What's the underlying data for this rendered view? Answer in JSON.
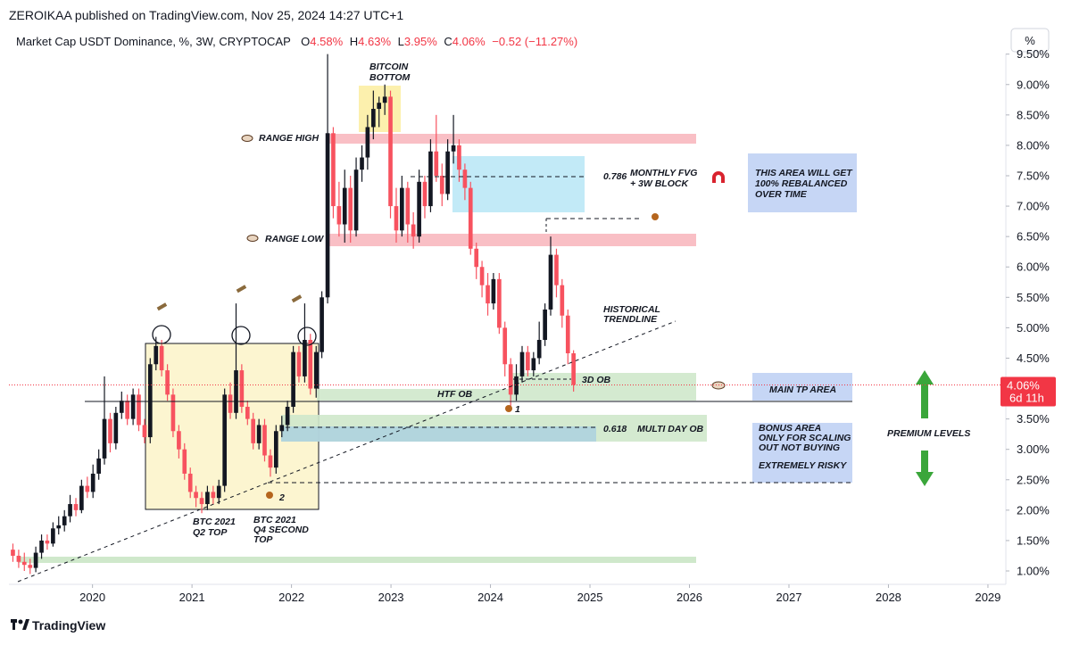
{
  "header": {
    "published": "ZEROIKAA published on TradingView.com, Nov 25, 2024 14:27 UTC+1",
    "footer": "TradingView",
    "scale_button": "%"
  },
  "chart_data": {
    "type": "candlestick",
    "title": "Market Cap USDT Dominance, %, 3W, CRYPTOCAP",
    "legend": [
      {
        "label": "O",
        "value": "4.58%"
      },
      {
        "label": "H",
        "value": "4.63%"
      },
      {
        "label": "L",
        "value": "3.95%"
      },
      {
        "label": "C",
        "value": "4.06%"
      }
    ],
    "change": "−0.52 (−11.27%)",
    "last_price_label": "4.06%",
    "countdown": "6d 11h",
    "up_color": "#131722",
    "down_color": "#f7525f",
    "x": [
      2019.2,
      2019.258,
      2019.315,
      2019.373,
      2019.43,
      2019.488,
      2019.545,
      2019.603,
      2019.66,
      2019.718,
      2019.775,
      2019.833,
      2019.89,
      2019.948,
      2020.005,
      2020.063,
      2020.12,
      2020.178,
      2020.235,
      2020.293,
      2020.35,
      2020.408,
      2020.465,
      2020.523,
      2020.58,
      2020.638,
      2020.695,
      2020.753,
      2020.81,
      2020.868,
      2020.925,
      2020.983,
      2021.04,
      2021.098,
      2021.155,
      2021.213,
      2021.27,
      2021.328,
      2021.385,
      2021.443,
      2021.5,
      2021.558,
      2021.615,
      2021.673,
      2021.73,
      2021.788,
      2021.845,
      2021.903,
      2021.96,
      2022.018,
      2022.075,
      2022.133,
      2022.19,
      2022.248,
      2022.305,
      2022.363,
      2022.42,
      2022.478,
      2022.535,
      2022.593,
      2022.65,
      2022.708,
      2022.765,
      2022.823,
      2022.88,
      2022.938,
      2022.995,
      2023.053,
      2023.11,
      2023.168,
      2023.225,
      2023.283,
      2023.34,
      2023.398,
      2023.455,
      2023.513,
      2023.57,
      2023.628,
      2023.685,
      2023.743,
      2023.8,
      2023.858,
      2023.915,
      2023.973,
      2024.03,
      2024.088,
      2024.145,
      2024.203,
      2024.26,
      2024.318,
      2024.375,
      2024.433,
      2024.49,
      2024.548,
      2024.605,
      2024.663,
      2024.72,
      2024.778,
      2024.835
    ],
    "open": [
      1.35,
      1.25,
      1.15,
      1.1,
      1.05,
      1.3,
      1.5,
      1.45,
      1.7,
      1.75,
      1.9,
      2.1,
      2.0,
      2.4,
      2.3,
      2.6,
      2.85,
      3.5,
      3.1,
      3.6,
      3.8,
      3.5,
      3.9,
      3.4,
      3.2,
      4.4,
      4.7,
      4.3,
      3.9,
      3.3,
      3.0,
      2.6,
      2.3,
      2.2,
      2.1,
      2.3,
      2.2,
      2.4,
      3.9,
      3.6,
      4.3,
      3.7,
      3.5,
      3.1,
      3.4,
      2.9,
      2.7,
      3.3,
      3.4,
      3.7,
      4.6,
      4.2,
      4.8,
      4.0,
      4.6,
      5.5,
      8.2,
      7.0,
      6.7,
      7.3,
      6.6,
      7.6,
      7.8,
      8.3,
      8.6,
      8.7,
      8.8,
      7.0,
      6.6,
      7.3,
      6.7,
      6.5,
      7.4,
      7.0,
      7.9,
      7.5,
      7.2,
      7.9,
      8.0,
      7.6,
      7.3,
      6.3,
      6.0,
      5.7,
      5.4,
      5.8,
      5.0,
      4.4,
      3.9,
      4.2,
      4.6,
      4.3,
      4.5,
      4.8,
      5.3,
      6.2,
      5.7,
      5.2,
      4.58
    ],
    "high": [
      1.45,
      1.35,
      1.3,
      1.2,
      1.4,
      1.6,
      1.6,
      1.8,
      1.9,
      2.0,
      2.25,
      2.2,
      2.5,
      2.55,
      2.75,
      3.0,
      4.2,
      3.6,
      3.7,
      3.95,
      3.9,
      4.0,
      4.0,
      3.5,
      4.5,
      4.85,
      4.8,
      4.4,
      4.0,
      3.4,
      3.1,
      2.7,
      2.4,
      2.3,
      2.4,
      2.4,
      2.5,
      4.0,
      4.1,
      5.4,
      4.4,
      3.8,
      3.6,
      3.5,
      3.5,
      3.0,
      3.4,
      3.55,
      3.8,
      4.7,
      4.7,
      5.4,
      4.9,
      4.7,
      5.6,
      9.5,
      8.3,
      7.4,
      7.6,
      7.5,
      7.8,
      8.0,
      8.5,
      8.9,
      8.8,
      9.0,
      8.9,
      7.3,
      7.5,
      7.4,
      6.9,
      7.6,
      7.5,
      8.1,
      8.5,
      7.7,
      8.1,
      8.5,
      8.1,
      7.7,
      7.4,
      6.4,
      6.1,
      5.9,
      5.9,
      5.9,
      5.1,
      4.5,
      4.4,
      4.7,
      4.7,
      4.6,
      5.1,
      5.4,
      6.5,
      6.3,
      5.8,
      5.3,
      4.63
    ],
    "low": [
      1.15,
      1.05,
      1.0,
      0.95,
      0.98,
      1.2,
      1.35,
      1.4,
      1.6,
      1.65,
      1.8,
      1.9,
      1.95,
      2.2,
      2.2,
      2.5,
      2.75,
      2.95,
      3.0,
      3.5,
      3.4,
      3.4,
      3.3,
      3.1,
      3.1,
      4.3,
      4.2,
      3.8,
      3.2,
      2.85,
      2.5,
      2.2,
      2.05,
      1.95,
      2.0,
      2.1,
      2.1,
      2.3,
      3.5,
      3.5,
      3.6,
      3.4,
      3.0,
      3.0,
      2.8,
      2.55,
      2.6,
      3.2,
      3.3,
      3.6,
      4.1,
      4.1,
      3.9,
      3.85,
      4.5,
      5.4,
      6.8,
      6.5,
      6.4,
      6.4,
      6.5,
      7.4,
      7.6,
      8.1,
      8.3,
      8.5,
      6.8,
      6.4,
      6.5,
      6.4,
      6.3,
      6.4,
      6.8,
      6.9,
      7.4,
      7.0,
      7.1,
      7.7,
      7.4,
      7.1,
      6.2,
      5.8,
      5.5,
      5.2,
      5.3,
      4.9,
      4.2,
      3.7,
      3.8,
      4.1,
      4.2,
      4.2,
      4.4,
      4.7,
      5.2,
      5.5,
      5.0,
      4.4,
      3.95
    ],
    "close": [
      1.25,
      1.15,
      1.1,
      1.05,
      1.3,
      1.5,
      1.45,
      1.7,
      1.75,
      1.9,
      2.1,
      2.0,
      2.4,
      2.3,
      2.6,
      2.85,
      3.5,
      3.1,
      3.6,
      3.8,
      3.5,
      3.9,
      3.4,
      3.2,
      4.4,
      4.7,
      4.3,
      3.9,
      3.3,
      3.0,
      2.6,
      2.3,
      2.2,
      2.1,
      2.3,
      2.2,
      2.4,
      3.9,
      3.6,
      4.3,
      3.7,
      3.5,
      3.1,
      3.4,
      2.9,
      2.7,
      3.3,
      3.4,
      3.7,
      4.6,
      4.2,
      4.8,
      4.0,
      4.6,
      5.5,
      8.2,
      7.0,
      6.7,
      7.3,
      6.6,
      7.6,
      7.8,
      8.3,
      8.6,
      8.7,
      8.8,
      7.0,
      6.6,
      7.3,
      6.7,
      6.5,
      7.4,
      7.0,
      7.9,
      7.5,
      7.2,
      7.9,
      8.0,
      7.6,
      7.3,
      6.3,
      6.0,
      5.7,
      5.4,
      5.8,
      5.0,
      4.4,
      3.9,
      4.2,
      4.6,
      4.3,
      4.5,
      4.8,
      5.3,
      6.2,
      5.7,
      5.2,
      4.58,
      4.06
    ],
    "xlim": [
      2019.16,
      2029.18
    ],
    "xticks": [
      2020,
      2021,
      2022,
      2023,
      2024,
      2025,
      2026,
      2027,
      2028,
      2029
    ],
    "ylim": [
      0.78,
      9.51
    ],
    "yticks": [
      {
        "value": 1.0,
        "label": "1.00%"
      },
      {
        "value": 1.5,
        "label": "1.50%"
      },
      {
        "value": 2.0,
        "label": "2.00%"
      },
      {
        "value": 2.5,
        "label": "2.50%"
      },
      {
        "value": 3.0,
        "label": "3.00%"
      },
      {
        "value": 3.5,
        "label": "3.50%"
      },
      {
        "value": 4.0,
        "label": "4.00%"
      },
      {
        "value": 4.5,
        "label": "4.50%"
      },
      {
        "value": 5.0,
        "label": "5.00%"
      },
      {
        "value": 5.5,
        "label": "5.50%"
      },
      {
        "value": 6.0,
        "label": "6.00%"
      },
      {
        "value": 6.5,
        "label": "6.50%"
      },
      {
        "value": 7.0,
        "label": "7.00%"
      },
      {
        "value": 7.5,
        "label": "7.50%"
      },
      {
        "value": 8.0,
        "label": "8.00%"
      },
      {
        "value": 8.5,
        "label": "8.50%"
      },
      {
        "value": 9.0,
        "label": "9.00%"
      },
      {
        "value": 9.5,
        "label": "9.50%"
      }
    ],
    "annotations": [
      "BITCOIN",
      "BOTTOM",
      "RANGE HIGH",
      "RANGE LOW",
      "0.786",
      "MONTHLY FVG",
      "+ 3W BLOCK",
      "THIS AREA WILL GET",
      "100% REBALANCED",
      "OVER TIME",
      "HISTORICAL",
      "TRENDLINE",
      "3D OB",
      "HTF OB",
      "1",
      "2",
      "MAIN TP AREA",
      "0.618",
      "MULTI DAY OB",
      "BONUS AREA",
      "ONLY FOR SCALING",
      "OUT NOT BUYING",
      "EXTREMELY RISKY",
      "PREMIUM LEVELS",
      "BTC 2021",
      "Q2 TOP",
      "BTC 2021",
      "Q4 SECOND",
      "TOP"
    ]
  }
}
